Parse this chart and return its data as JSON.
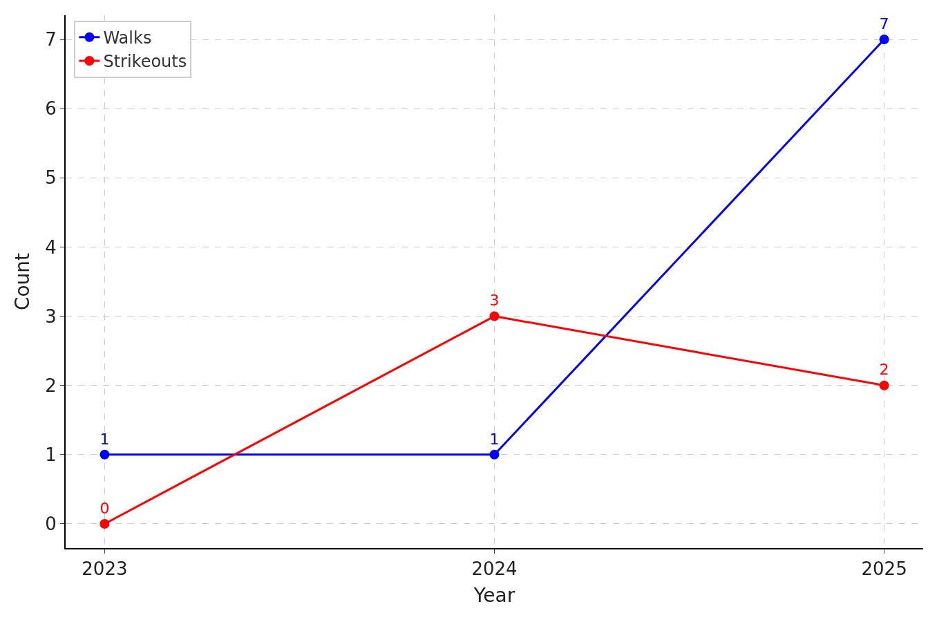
{
  "chart_data": {
    "type": "line",
    "xlabel": "Year",
    "ylabel": "Count",
    "x": [
      2023,
      2024,
      2025
    ],
    "xlim": [
      2022.9,
      2025.1
    ],
    "xticks": [
      2023,
      2024,
      2025
    ],
    "ylim": [
      -0.35,
      7.35
    ],
    "yticks": [
      0,
      1,
      2,
      3,
      4,
      5,
      6,
      7
    ],
    "series": [
      {
        "name": "Walks",
        "color": "#0000ff",
        "values": [
          1,
          1,
          7
        ]
      },
      {
        "name": "Strikeouts",
        "color": "#ff0000",
        "values": [
          0,
          3,
          2
        ]
      }
    ],
    "grid": true,
    "legend": "top left",
    "marker": "circle",
    "line_style": "solid",
    "data_labels": true
  }
}
